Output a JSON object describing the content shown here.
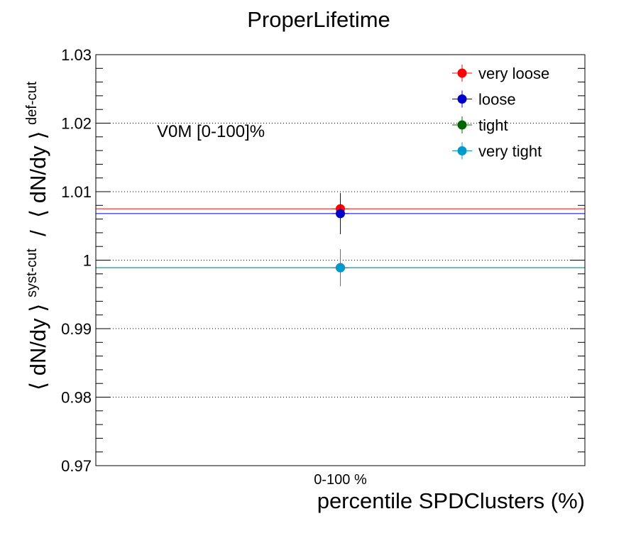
{
  "chart_data": {
    "type": "scatter",
    "title": "ProperLifetime",
    "xlabel": "percentile SPDClusters (%)",
    "ylabel": {
      "part1": "⟨ dN/dy ⟩",
      "sup1": "syst-cut",
      "sep": " / ",
      "part2": "⟨ dN/dy ⟩",
      "sup2": "def-cut"
    },
    "categories": [
      "0-100 %"
    ],
    "ylim": [
      0.97,
      1.03
    ],
    "yticks": [
      {
        "value": 0.97,
        "label": "0.97"
      },
      {
        "value": 0.98,
        "label": "0.98"
      },
      {
        "value": 0.99,
        "label": "0.99"
      },
      {
        "value": 1.0,
        "label": "1"
      },
      {
        "value": 1.01,
        "label": "1.01"
      },
      {
        "value": 1.02,
        "label": "1.02"
      },
      {
        "value": 1.03,
        "label": "1.03"
      }
    ],
    "grid": "horizontal dotted",
    "annotation": "V0M [0-100]%",
    "legend_position": "top-right",
    "series": [
      {
        "name": "very loose",
        "color": "#ff0000",
        "values": [
          1.0075
        ],
        "errors": [
          0.0023
        ]
      },
      {
        "name": "loose",
        "color": "#0000cc",
        "values": [
          1.0068
        ],
        "errors": [
          0.003
        ]
      },
      {
        "name": "tight",
        "color": "#006600",
        "values": [
          0.9989
        ],
        "errors": [
          0.0027
        ]
      },
      {
        "name": "very tight",
        "color": "#0099cc",
        "values": [
          0.9989
        ],
        "errors": [
          0.0027
        ]
      }
    ]
  }
}
